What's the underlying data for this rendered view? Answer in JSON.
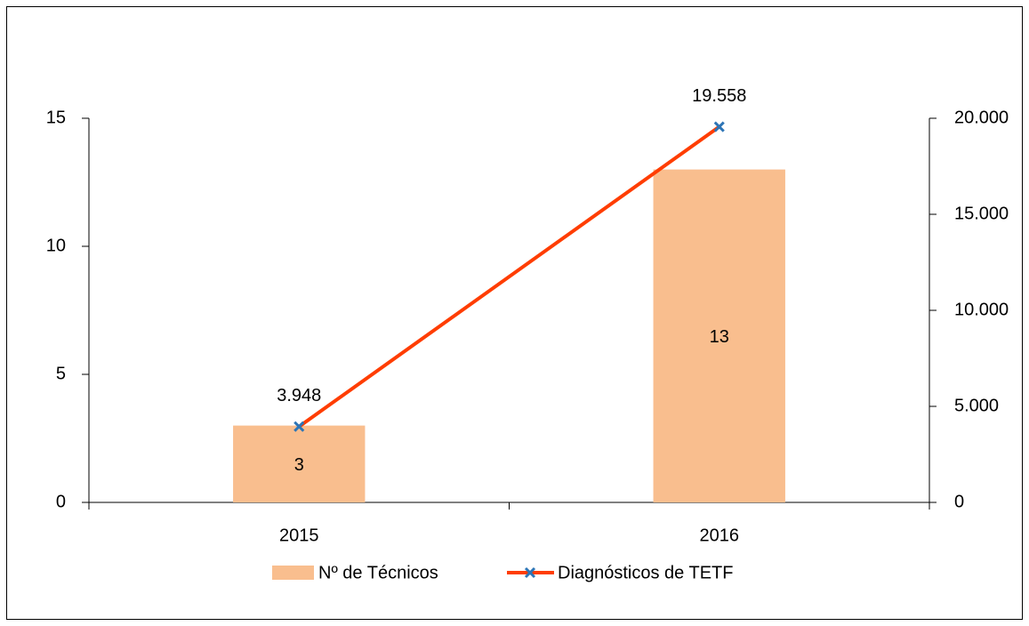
{
  "chart_data": {
    "type": "bar",
    "categories": [
      "2015",
      "2016"
    ],
    "series": [
      {
        "name": "Nº de Técnicos",
        "type": "bar",
        "axis": "y",
        "color": "#f9be8e",
        "values": [
          3,
          13
        ]
      },
      {
        "name": "Diagnósticos de TETF",
        "type": "line",
        "axis": "y2",
        "color": "#ff3d00",
        "marker_color": "#2e75b6",
        "values": [
          3948,
          19558
        ],
        "value_labels": [
          "3.948",
          "19.558"
        ]
      }
    ],
    "ylim": [
      0,
      15
    ],
    "yticks": [
      0,
      5,
      10,
      15
    ],
    "y2lim": [
      0,
      20000
    ],
    "y2ticks": [
      0,
      {
        "value": 5000,
        "label": "5.000"
      },
      {
        "value": 10000,
        "label": "10.000"
      },
      {
        "value": 15000,
        "label": "15.000"
      },
      {
        "value": 20000,
        "label": "20.000"
      }
    ],
    "legend": "bottom"
  }
}
